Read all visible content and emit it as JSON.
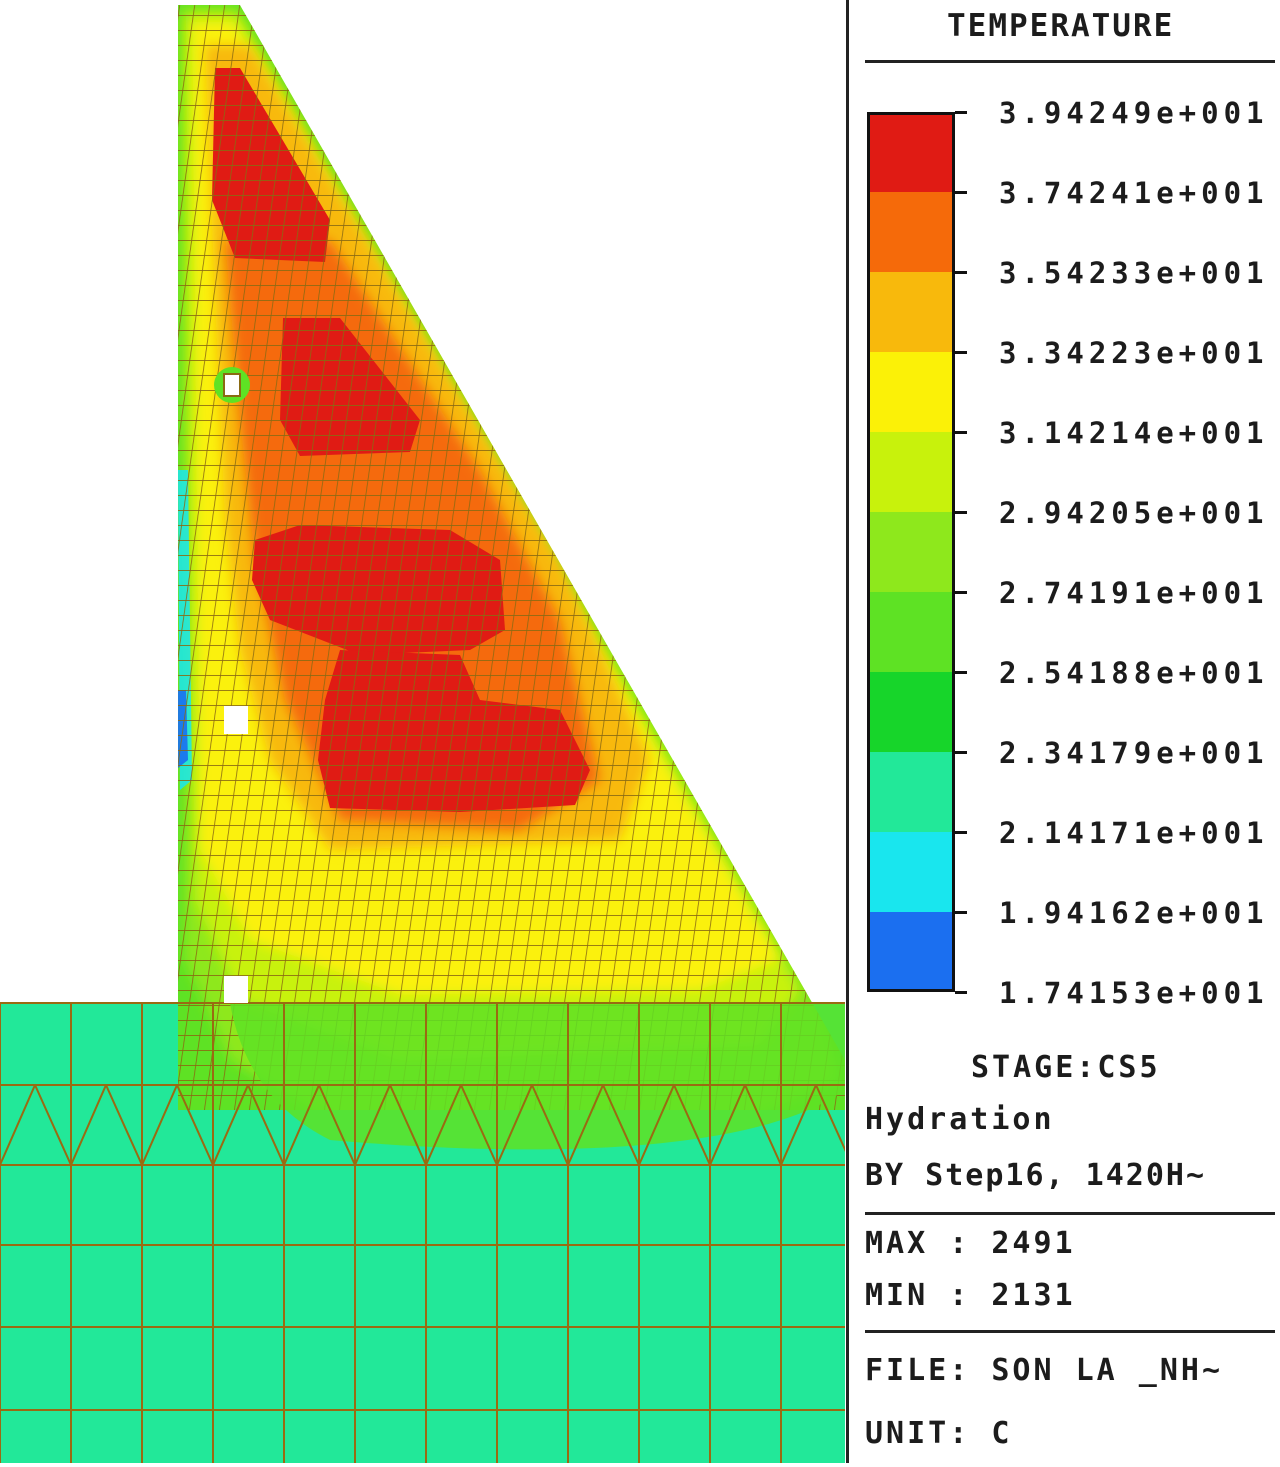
{
  "panel": {
    "title": "TEMPERATURE",
    "legend": [
      {
        "label": "3.94249e+001",
        "color": "#e01b14"
      },
      {
        "label": "3.74241e+001",
        "color": "#f56a0a"
      },
      {
        "label": "3.54233e+001",
        "color": "#f8b90c"
      },
      {
        "label": "3.34223e+001",
        "color": "#fbf107"
      },
      {
        "label": "3.14214e+001",
        "color": "#c8f20c"
      },
      {
        "label": "2.94205e+001",
        "color": "#8ee81c"
      },
      {
        "label": "2.74191e+001",
        "color": "#5ee224"
      },
      {
        "label": "2.54188e+001",
        "color": "#17d52a"
      },
      {
        "label": "2.34179e+001",
        "color": "#22e899"
      },
      {
        "label": "2.14171e+001",
        "color": "#19e6ee"
      },
      {
        "label": "1.94162e+001",
        "color": "#1b6ff0"
      }
    ],
    "legend_bottom_label": "1.74153e+001",
    "stage": "STAGE:CS5",
    "analysis": "Hydration",
    "step": "BY Step16, 1420H~",
    "max": "MAX : 2491",
    "min": "MIN : 2131",
    "file": "FILE: SON LA _NH~",
    "unit": "UNIT: C"
  },
  "model": {
    "foundation_color": "#22e899",
    "mesh_color": "#9a6a12"
  }
}
